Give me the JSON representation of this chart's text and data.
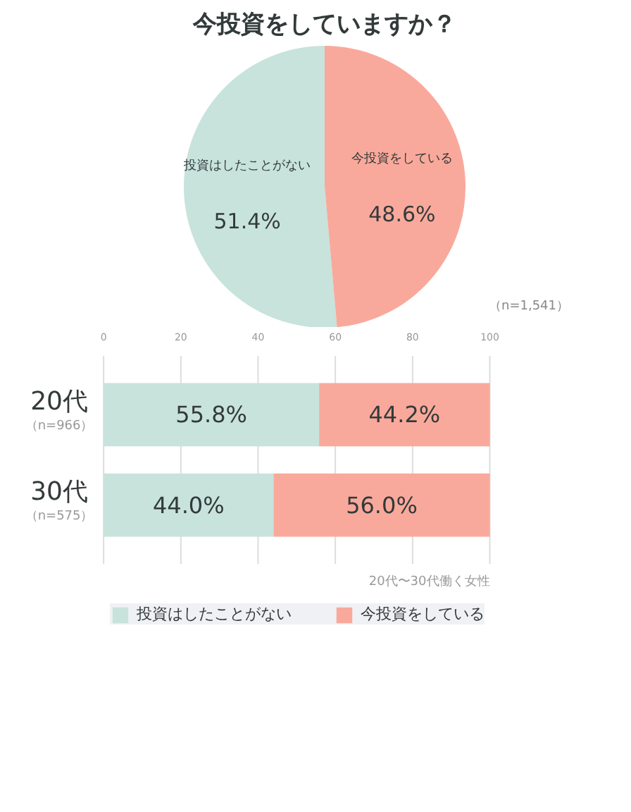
{
  "chart_data": [
    {
      "type": "pie",
      "title": "今投資をしていますか？",
      "categories": [
        "投資はしたことがない",
        "今投資をしている"
      ],
      "values": [
        51.4,
        48.6
      ],
      "colors": [
        "#c7e3dc",
        "#f9a99b"
      ],
      "value_labels": [
        "51.4%",
        "48.6%"
      ],
      "annotations": [
        "（n=1,541）"
      ]
    },
    {
      "type": "bar",
      "orientation": "horizontal",
      "stacked": true,
      "categories": [
        "20代",
        "30代"
      ],
      "series": [
        {
          "name": "投資はしたことがない",
          "color": "#c7e3dc",
          "values": [
            55.8,
            44.0
          ],
          "value_labels": [
            "55.8%",
            "44.0%"
          ]
        },
        {
          "name": "今投資をしている",
          "color": "#f9a99b",
          "values": [
            44.2,
            56.0
          ],
          "value_labels": [
            "44.2%",
            "56.0%"
          ]
        }
      ],
      "xlim": [
        0,
        100
      ],
      "xticks": [
        0,
        20,
        40,
        60,
        80,
        100
      ],
      "grid": "x",
      "legend": "bottom",
      "annotations": [
        "（n=966）",
        "（n=575）",
        "20代〜30代働く女性"
      ]
    }
  ]
}
